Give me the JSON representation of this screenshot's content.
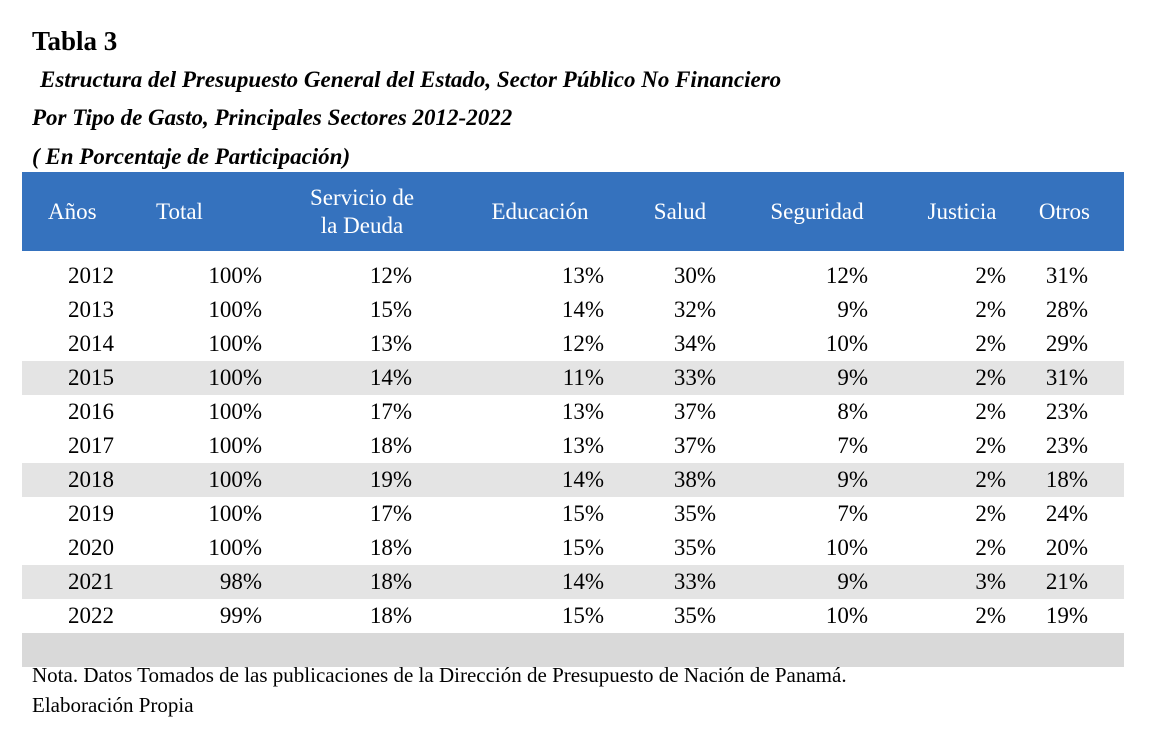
{
  "title": "Tabla 3",
  "subtitle_lines": [
    "Estructura del Presupuesto General del Estado, Sector Público No Financiero",
    "Por Tipo de Gasto, Principales Sectores 2012-2022",
    "( En Porcentaje de Participación)"
  ],
  "table": {
    "headers": [
      "Años",
      "Total",
      "Servicio de",
      "la Deuda",
      "Educación",
      "Salud",
      "Seguridad",
      "Justicia",
      "Otros"
    ],
    "header_bg": "#3572be",
    "shade_color": "#e4e4e4",
    "rows": [
      [
        "2012",
        "100%",
        "12%",
        "13%",
        "30%",
        "12%",
        "2%",
        "31%"
      ],
      [
        "2013",
        "100%",
        "15%",
        "14%",
        "32%",
        "9%",
        "2%",
        "28%"
      ],
      [
        "2014",
        "100%",
        "13%",
        "12%",
        "34%",
        "10%",
        "2%",
        "29%"
      ],
      [
        "2015",
        "100%",
        "14%",
        "11%",
        "33%",
        "9%",
        "2%",
        "31%"
      ],
      [
        "2016",
        "100%",
        "17%",
        "13%",
        "37%",
        "8%",
        "2%",
        "23%"
      ],
      [
        "2017",
        "100%",
        "18%",
        "13%",
        "37%",
        "7%",
        "2%",
        "23%"
      ],
      [
        "2018",
        "100%",
        "19%",
        "14%",
        "38%",
        "9%",
        "2%",
        "18%"
      ],
      [
        "2019",
        "100%",
        "17%",
        "15%",
        "35%",
        "7%",
        "2%",
        "24%"
      ],
      [
        "2020",
        "100%",
        "18%",
        "15%",
        "35%",
        "10%",
        "2%",
        "20%"
      ],
      [
        "2021",
        "98%",
        "18%",
        "14%",
        "33%",
        "9%",
        "3%",
        "21%"
      ],
      [
        "2022",
        "99%",
        "18%",
        "15%",
        "35%",
        "10%",
        "2%",
        "19%"
      ]
    ]
  },
  "note_lines": [
    "Nota. Datos Tomados de las publicaciones de la Dirección de Presupuesto de Nación de Panamá.",
    "Elaboración Propia"
  ]
}
